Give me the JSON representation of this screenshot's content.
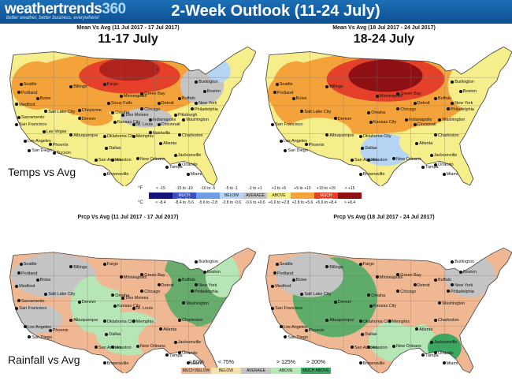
{
  "header": {
    "logo_text": "weathertrends",
    "logo_number": "360",
    "tagline": "better weather, better business, everywhere!",
    "title": "2-Week Outlook (11-24 July)",
    "bg_color": "#1565ad"
  },
  "temps": {
    "section_label": "Temps vs Avg",
    "week1": {
      "header": "Mean Vs Avg (11 Jul 2017 - 17 Jul 2017)",
      "dates": "11-17 July"
    },
    "week2": {
      "header": "Mean Vs Avg (18 Jul 2017 - 24 Jul 2017)",
      "dates": "18-24 July"
    },
    "legend": {
      "f_unit": "°F",
      "c_unit": "°C",
      "f_ranges": [
        "< -15",
        "-15 to -10",
        "-10 to -5",
        "-5 to -1",
        "-1 to +1",
        "+1 to +5",
        "+5 to +10",
        "+10 to +15",
        "> +15"
      ],
      "c_ranges": [
        "< -8.4",
        "-8.4 to -5.6",
        "-5.6 to -2.8",
        "-2.8 to -0.6",
        "-0.6 to +0.6",
        "+0.6 to +2.8",
        "+2.8 to +5.6",
        "+5.6 to +8.4",
        "> +8.4"
      ],
      "categories": [
        "",
        "MUCH BELOW",
        "",
        "BELOW",
        "AVERAGE",
        "ABOVE",
        "",
        "MUCH ABOVE",
        ""
      ],
      "colors": [
        "#14147a",
        "#3a4fc4",
        "#6f9ee6",
        "#b6d4f4",
        "#c4c4c4",
        "#f6ee8a",
        "#f4a23a",
        "#e4402a",
        "#8e0f14"
      ]
    }
  },
  "precip": {
    "section_label": "Rainfall vs Avg",
    "week1": {
      "header": "Prcp Vs Avg (11 Jul 2017 - 17 Jul 2017)"
    },
    "week2": {
      "header": "Prcp Vs Avg (18 Jul 2017 - 24 Jul 2017)"
    },
    "legend": {
      "ranges": [
        "< 50%",
        "< 75%",
        "",
        "> 125%",
        "> 200%"
      ],
      "categories": [
        "MUCH BELOW",
        "BELOW",
        "AVERAGE",
        "ABOVE",
        "MUCH ABOVE"
      ],
      "colors": [
        "#f0b892",
        "#f6e2a8",
        "#c4c4c4",
        "#b6e6b6",
        "#3aa860"
      ]
    }
  },
  "map_colors": {
    "ocean": "#ffffff",
    "border": "#555555",
    "temp_above": "#f6ee8a",
    "temp_warm": "#f4a23a",
    "temp_hot": "#e4402a",
    "temp_veryhot": "#8e0f14",
    "temp_avg": "#c4c4c4",
    "temp_cool": "#b6d4f4",
    "prcp_dry": "#f0b892",
    "prcp_wet": "#b6e6b6",
    "prcp_verywet": "#3aa860",
    "prcp_avg": "#c4c4c4"
  },
  "cities_temp_week1": [
    "Seattle",
    "Portland",
    "Medford",
    "Boise",
    "Billings",
    "Fargo",
    "Minneapolis",
    "Sioux Falls",
    "Green Bay",
    "Detroit",
    "Buffalo",
    "Burlington",
    "Boston",
    "New York",
    "Philadelphia",
    "Salt Lake City",
    "Cheyenne",
    "Denver",
    "Omaha",
    "Chicago",
    "Des Moines",
    "Indianapolis",
    "Kansas City",
    "St. Louis",
    "Cincinnati",
    "Pittsburgh",
    "Washington",
    "Charleston",
    "Sacramento",
    "San Francisco",
    "Los Angeles",
    "San Diego",
    "Las Vegas",
    "Phoenix",
    "Tucson",
    "Albuquerque",
    "Oklahoma City",
    "Memphis",
    "Nashville",
    "Atlanta",
    "Dallas",
    "San Antonio",
    "Houston",
    "New Orleans",
    "Jacksonville",
    "Orlando",
    "Tampa",
    "Miami",
    "Brownsville"
  ],
  "cities_temp_week2": [
    "Seattle",
    "Portland",
    "Boise",
    "Billings",
    "Minneapolis",
    "Green Bay",
    "Detroit",
    "Buffalo",
    "Burlington",
    "Boston",
    "New York",
    "Philadelphia",
    "Salt Lake City",
    "Denver",
    "Omaha",
    "Chicago",
    "Indianapolis",
    "Kansas City",
    "Cincinnati",
    "Washington",
    "Charleston",
    "San Francisco",
    "Los Angeles",
    "San Diego",
    "Phoenix",
    "Albuquerque",
    "Oklahoma City",
    "Atlanta",
    "Dallas",
    "San Antonio",
    "Houston",
    "New Orleans",
    "Jacksonville",
    "Orlando",
    "Tampa",
    "Miami",
    "Brownsville"
  ],
  "cities_prcp_week1": [
    "Seattle",
    "Portland",
    "Medford",
    "Boise",
    "Billings",
    "Fargo",
    "Minneapolis",
    "Green Bay",
    "Detroit",
    "Buffalo",
    "Burlington",
    "Boston",
    "New York",
    "Philadelphia",
    "Salt Lake City",
    "Denver",
    "Omaha",
    "Chicago",
    "Des Moines",
    "Kansas City",
    "St. Louis",
    "Washington",
    "Charleston",
    "Sacramento",
    "San Francisco",
    "Los Angeles",
    "San Diego",
    "Phoenix",
    "Albuquerque",
    "Oklahoma City",
    "Memphis",
    "Atlanta",
    "Dallas",
    "San Antonio",
    "Houston",
    "New Orleans",
    "Jacksonville",
    "Orlando",
    "Tampa",
    "Miami",
    "Brownsville"
  ],
  "cities_prcp_week2": [
    "Seattle",
    "Portland",
    "Medford",
    "Boise",
    "Billings",
    "Fargo",
    "Minneapolis",
    "Green Bay",
    "Detroit",
    "Buffalo",
    "Burlington",
    "Boston",
    "New York",
    "Philadelphia",
    "Salt Lake City",
    "Denver",
    "Omaha",
    "Chicago",
    "Kansas City",
    "Washington",
    "Charleston",
    "San Francisco",
    "Los Angeles",
    "San Diego",
    "Phoenix",
    "Albuquerque",
    "Oklahoma City",
    "Memphis",
    "Atlanta",
    "Dallas",
    "San Antonio",
    "Houston",
    "New Orleans",
    "Jacksonville",
    "Orlando",
    "Tampa",
    "Miami",
    "Brownsville"
  ]
}
